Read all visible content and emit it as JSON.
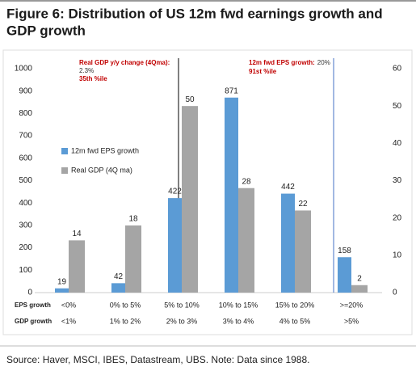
{
  "chart_data": {
    "type": "bar",
    "title_lines": [
      "Figure 6: Distribution of US 12m fwd earnings growth and",
      "GDP growth"
    ],
    "category_rows": [
      {
        "name": "EPS growth",
        "labels": [
          "<0%",
          "0% to 5%",
          "5% to 10%",
          "10% to 15%",
          "15% to 20%",
          ">=20%"
        ]
      },
      {
        "name": "GDP growth",
        "labels": [
          "<1%",
          "1% to 2%",
          "2% to 3%",
          "3% to 4%",
          "4% to 5%",
          ">5%"
        ]
      }
    ],
    "series": [
      {
        "name": "12m fwd EPS growth",
        "color": "#5b9bd5",
        "values": [
          19,
          42,
          422,
          871,
          442,
          158
        ]
      },
      {
        "name": "Real GDP (4Q ma)",
        "color": "#a5a5a5",
        "axis": "y2",
        "values": [
          14,
          18,
          50,
          28,
          22,
          2
        ]
      }
    ],
    "ylim": [
      0,
      1000
    ],
    "yticks": [
      0,
      100,
      200,
      300,
      400,
      500,
      600,
      700,
      800,
      900,
      1000
    ],
    "y2lim": [
      0,
      60
    ],
    "y2ticks": [
      0,
      10,
      20,
      30,
      40,
      50,
      60
    ],
    "annotations": [
      {
        "label": "Real GDP y/y change (4Qma):",
        "value": "2.3%",
        "note": "35th %ile",
        "color": "#000000"
      },
      {
        "label": "12m fwd EPS growth:",
        "value": "20%",
        "note": "91st %ile",
        "color": "#4472c4"
      }
    ],
    "source": "Source: Haver, MSCI, IBES, Datastream, UBS. Note: Data since 1988."
  }
}
